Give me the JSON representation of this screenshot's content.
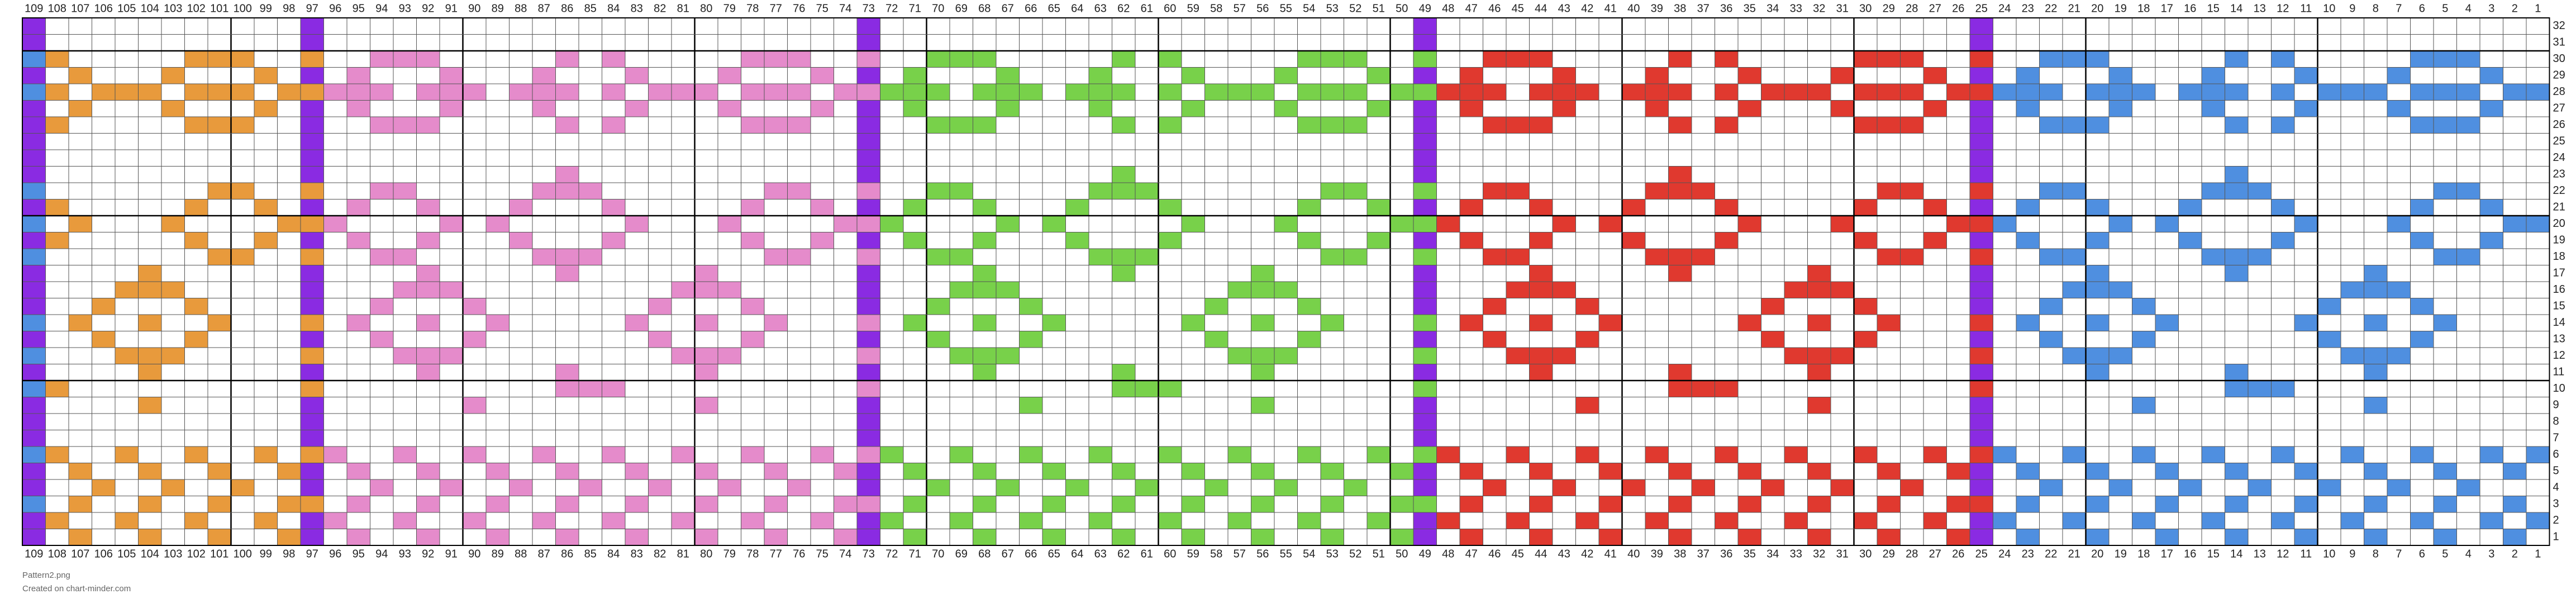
{
  "columns": [
    109,
    108,
    107,
    106,
    105,
    104,
    103,
    102,
    101,
    100,
    99,
    98,
    97,
    96,
    95,
    94,
    93,
    92,
    91,
    90,
    89,
    88,
    87,
    86,
    85,
    84,
    83,
    82,
    81,
    80,
    79,
    78,
    77,
    76,
    75,
    74,
    73,
    72,
    71,
    70,
    69,
    68,
    67,
    66,
    65,
    64,
    63,
    62,
    61,
    60,
    59,
    58,
    57,
    56,
    55,
    54,
    53,
    52,
    51,
    50,
    49,
    48,
    47,
    46,
    45,
    44,
    43,
    42,
    41,
    40,
    39,
    38,
    37,
    36,
    35,
    34,
    33,
    32,
    31,
    30,
    29,
    28,
    27,
    26,
    25,
    24,
    23,
    22,
    21,
    20,
    19,
    18,
    17,
    16,
    15,
    14,
    13,
    12,
    11,
    10,
    9,
    8,
    7,
    6,
    5,
    4,
    3,
    2,
    1
  ],
  "rows": [
    32,
    31,
    30,
    29,
    28,
    27,
    26,
    25,
    24,
    23,
    22,
    21,
    20,
    19,
    18,
    17,
    16,
    15,
    14,
    13,
    12,
    11,
    10,
    9,
    8,
    7,
    6,
    5,
    4,
    3,
    2,
    1
  ],
  "palette": {
    "P": "#8a2be2",
    "O": "#e89a3c",
    "K": "#e58bcb",
    "G": "#78d14a",
    "R": "#e0392f",
    "B": "#4f8fe0"
  },
  "grid": [
    "P...........P.......................P.......................P.......................P........................",
    "P...........P.......................P.......................P.......................P........................",
    "BO.....OOO..O..KKK.....K.K.....KKK..K..GGG.....G.G.....GGG..G..RRR.....R.R.....RRR..R..BBB.....B.B.....BBB...",
    "P.O...O...O.P.K...K...K...K...K...K.P.G...G...G...G...G...G.P.R...R...R...R...R...R.P.B...B...B...B...B...B..",
    "BO.OOO.OOO.OOKKK.KKK.KKK.K.KKK.KKK.KKGGG.GGG.GGG.G.GGG.GGG.GGRRR.RRR.RRR.R.RRR.RRR.RRBBB.BBB.BBB.B.BBB.BBB.BB",
    "P.O...O...O.P.K...K...K...K...K...K.P.G...G...G...G...G...G.P.R...R...R...R...R...R.P.B...B...B...B...B...B..",
    "PO.....OOO..P..KKK.....K.K.....KKK..P..GGG.....G.G.....GGG..P..RRR.....R.R.....RRR..P..BBB.....B.B.....BBB...",
    "P...........P.......................P.......................P.......................P........................",
    "P...........P.......................P.......................P.......................P........................",
    "P...........P..........K............P..........G............P..........R............P..........B.............",
    "B.......OO..O..KK.....KKK.......KK..K..GG.....GGG.......GG..G..RR.....RRR.......RR..R..BB.....BBB.......BB...",
    "PO.....O..O.P.K..K...K...K.....K..K.P.G..G...G...G.....G..G.P.R..R...R...R.....R..R.P.B..B...B...B.....B..B..",
    "B.O...O....OOK....K.K.....K...K....KKG....G.G.....G...G....GGR....R.R.....R...R....RRB....B.B.....B...B....BB",
    "PO.....O..O.P.K..K...K...K.....K..K.P.G..G...G...G.....G..G.P.R..R...R...R.....R..R.P.B..B...B...B.....B..B..",
    "B.......OO..O..KK.....KKK.......KK..K..GG.....GGG.......GG..G..RR.....RRR.......RR..R..BB.....BBB.......BB...",
    "P....O......P....K.....K.....K......P....G.....G.....G......P....R.....R.....R......P....B.....B.....B.......",
    "P...OOO.....P...KKK.........KKK.....P...GGG.........GGG.....P...RRR.........RRR.....P...BBB.........BBB......",
    "P..O...O....P..K...K.......K...K....P..G...G.......G...G....P..R...R.......R...R....P..B...B.......B...B.....",
    "B.O..O..O...O.K..K..K.....K..K..K...K.G..G..G.....G..G..G...G.R..R..R.....R..R..R...R.B..B..B.....B..B..B....",
    "P..O...O....P..K...K.......K...K....P..G...G.......G...G....P..R...R.......R...R....P..B...B.......B...B.....",
    "B...OOO.....O...KKK.........KKK.....K...GGG.........GGG.....G...RRR.........RRR.....R...BBB.........BBB......",
    "P....O......P....K.....K.....K......P....G.....G.....G......P....R.....R.....R......P....B.....B.....B.......",
    "BO..........O..........KKK..........K..........GGG..........G..........RRR..........R..........BBB...........",
    "P....O......P......K.........K......P......G.........G......P......R.........R......P......B.........B.......",
    "P...........P.......................P.......................P.......................P........................",
    "P...........P.......................P.......................P.......................P........................",
    "BO..O..O..O.OK..K..K..K..K..K..K..K.KG..G..G..G..G..G..G..G.GR..R..R..R..R..R..R..R.RB..B..B..B..B..B..B..B.B",
    "P.O..O..O..OP.K..K..K..K..K..K..K..KP.G..G..G..G..G..G..G..GP.R..R..R..R..R..R..R..RP.B..B..B..B..B..B..B..B.",
    "P..O..O..O..P..K..K..K..K..K..K..K..P..G..G..G..G..G..G..G..P..R..R..R..R..R..R..R..P..B..B..B..B..B..B..B...",
    "B.O..O..O..OO.K..K..K..K..K..K..K..KK.G..G..G..G..G..G..G..GG.R..R..R..R..R..R..R..RR.B..B..B..B..B..B..B..B.",
    "PO..O..O..O.PK..K..K..K..K..K..K..K.PG..G..G..G..G..G..G..G.PR..R..R..R..R..R..R..R.PB..B..B..B..B..B..B..B.B",
    "P.O..O..O..OP.K..K..K..K..K..K..K..KP.G..G..G..G..G..G..G..GP.R..R..R..R..R..R..R..RP.B..B..B..B..B..B..B..B."
  ],
  "footer": {
    "file": "Pattern2.png",
    "credit": "Created on chart-minder.com"
  }
}
